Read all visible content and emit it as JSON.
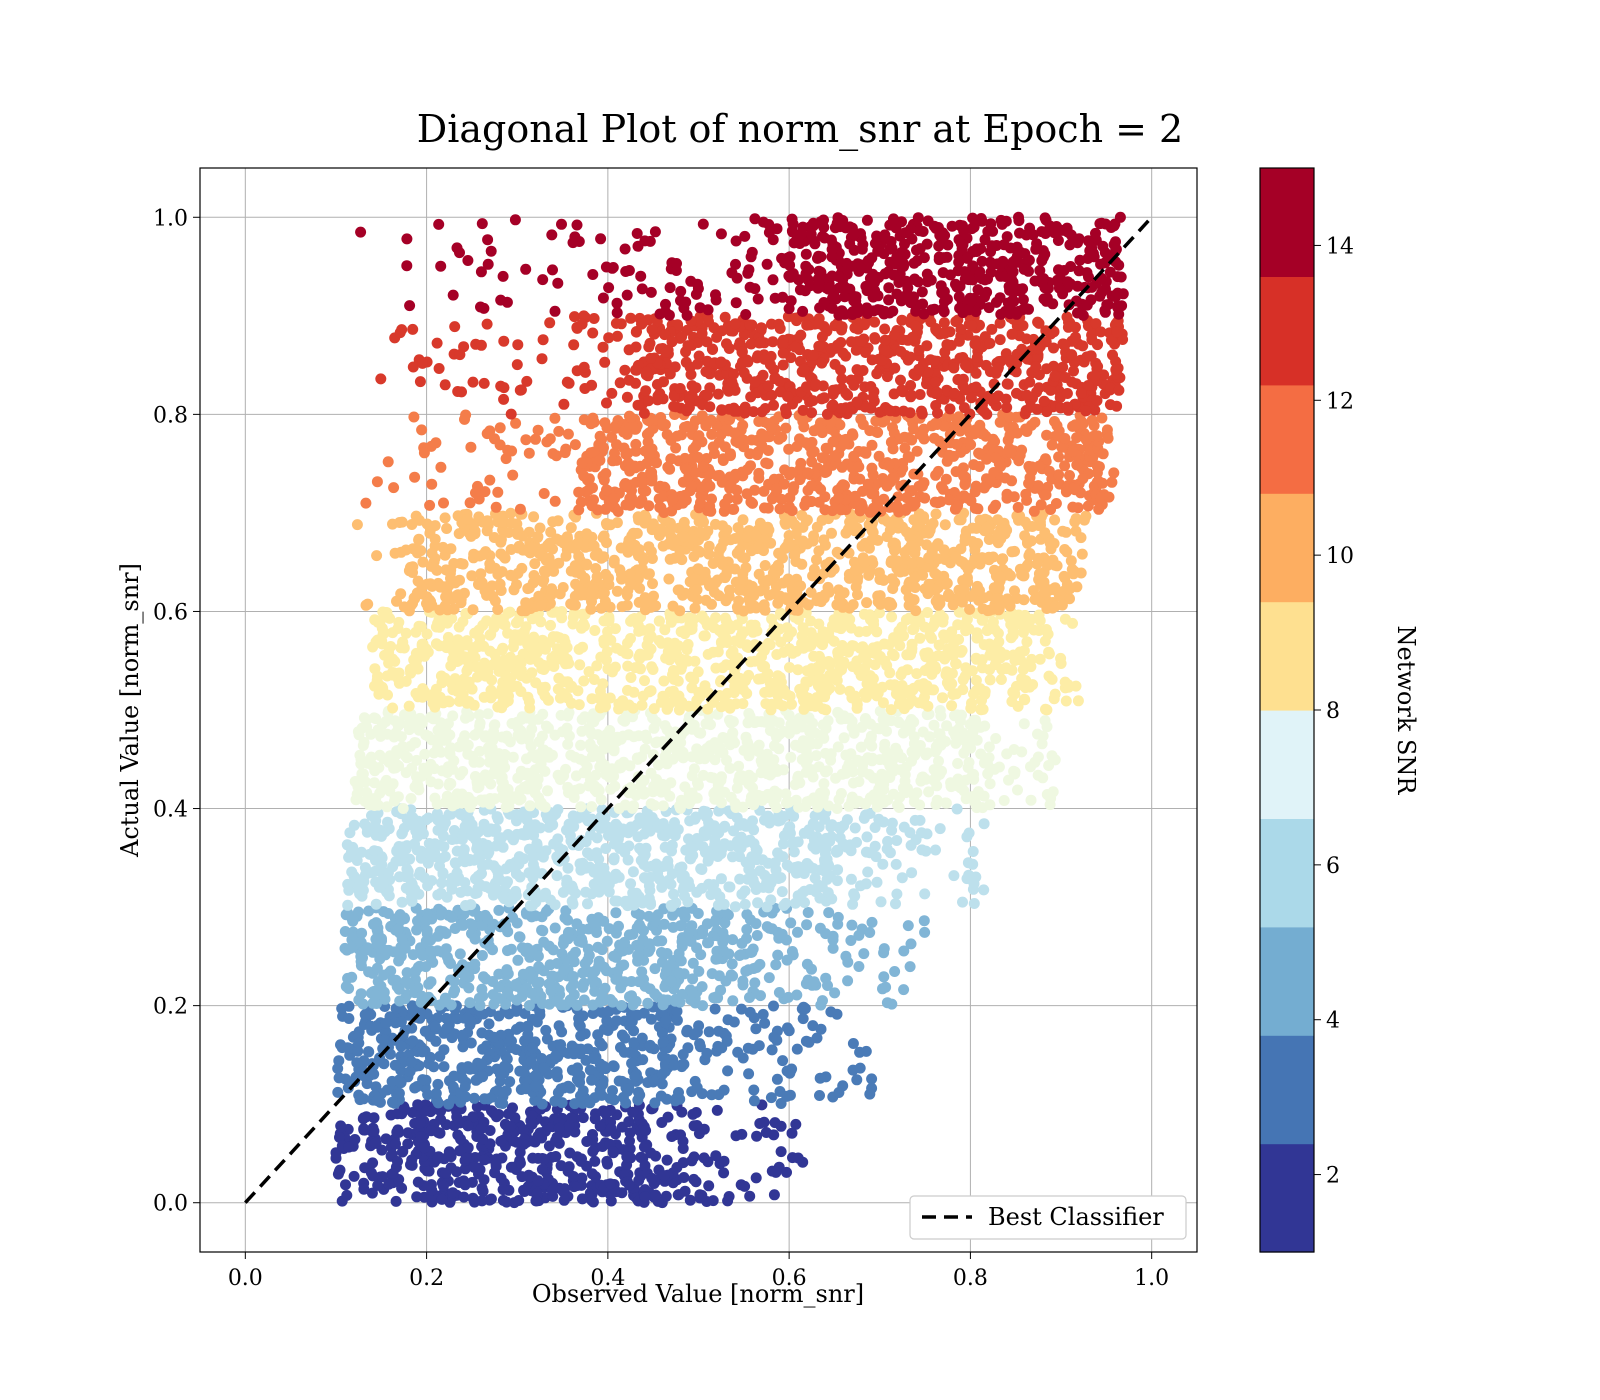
{
  "chart_data": {
    "type": "scatter",
    "title": "Diagonal Plot of norm_snr at Epoch = 2",
    "xlabel": "Observed Value [norm_snr]",
    "ylabel": "Actual Value [norm_snr]",
    "xlim": [
      -0.05,
      1.05
    ],
    "ylim": [
      -0.05,
      1.05
    ],
    "x_ticks": [
      "0.0",
      "0.2",
      "0.4",
      "0.6",
      "0.8",
      "1.0"
    ],
    "y_ticks": [
      "0.0",
      "0.2",
      "0.4",
      "0.6",
      "0.8",
      "1.0"
    ],
    "grid": true,
    "legend": {
      "placement": "lower-right",
      "entries": [
        "Best Classifier"
      ]
    },
    "reference_line": {
      "name": "Best Classifier",
      "style": "dashed",
      "color": "#000000",
      "x": [
        0.0,
        1.0
      ],
      "y": [
        0.0,
        1.0
      ]
    },
    "colorbar": {
      "label": "Network SNR",
      "range": [
        1,
        15
      ],
      "tick_labels": [
        "2",
        "4",
        "6",
        "8",
        "10",
        "12",
        "14"
      ],
      "colors": [
        "#313695",
        "#4575b4",
        "#74add1",
        "#abd9e9",
        "#e0f3f8",
        "#fee090",
        "#fdae61",
        "#f46d43",
        "#d73027",
        "#a50026"
      ]
    },
    "bands": [
      {
        "y": [
          0.0,
          0.1
        ],
        "x_core": [
          0.1,
          0.44
        ],
        "scatter_x_max": 0.62,
        "color": "#313695"
      },
      {
        "y": [
          0.1,
          0.2
        ],
        "x_core": [
          0.1,
          0.46
        ],
        "scatter_x_max": 0.7,
        "color": "#4a7bb7"
      },
      {
        "y": [
          0.2,
          0.3
        ],
        "x_core": [
          0.11,
          0.52
        ],
        "scatter_x_max": 0.75,
        "color": "#81b5d6"
      },
      {
        "y": [
          0.3,
          0.4
        ],
        "x_core": [
          0.11,
          0.64
        ],
        "scatter_x_max": 0.82,
        "color": "#bde0ec"
      },
      {
        "y": [
          0.4,
          0.5
        ],
        "x_core": [
          0.12,
          0.8
        ],
        "scatter_x_max": 0.9,
        "color": "#eff8e1"
      },
      {
        "y": [
          0.5,
          0.6
        ],
        "x_core": [
          0.14,
          0.86
        ],
        "scatter_x_max": 0.92,
        "color": "#fdeda6"
      },
      {
        "y": [
          0.6,
          0.7
        ],
        "x_core": [
          0.18,
          0.9
        ],
        "scatter_x_max": 0.93,
        "color": "#fdbe71"
      },
      {
        "y": [
          0.7,
          0.8
        ],
        "x_core": [
          0.37,
          0.94
        ],
        "scatter_x_max": 0.96,
        "color": "#f47d4a"
      },
      {
        "y": [
          0.8,
          0.9
        ],
        "x_core": [
          0.43,
          0.96
        ],
        "scatter_x_max": 0.97,
        "color": "#d8392b"
      },
      {
        "y": [
          0.9,
          1.0
        ],
        "x_core": [
          0.6,
          0.96
        ],
        "scatter_x_max": 0.97,
        "color": "#a50026"
      }
    ]
  }
}
